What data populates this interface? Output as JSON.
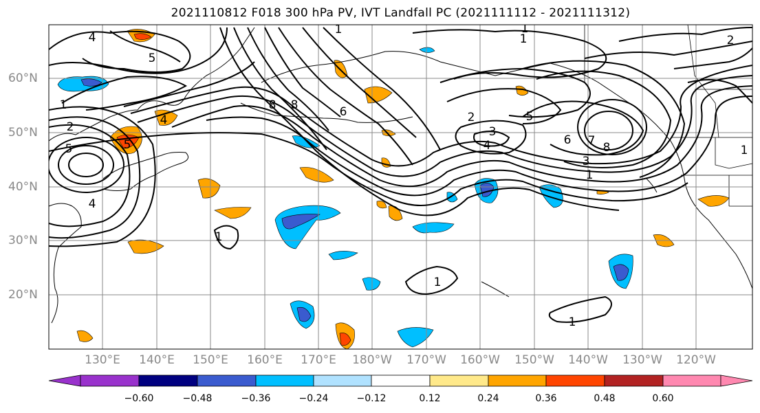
{
  "title": "2021110812 F018 300 hPa PV, IVT Landfall PC (2021111112 - 2021111312)",
  "lat_labels": [
    "60°N",
    "50°N",
    "40°N",
    "30°N",
    "20°N"
  ],
  "lon_labels": [
    "130°E",
    "140°E",
    "150°E",
    "160°E",
    "170°E",
    "180°W",
    "170°W",
    "160°W",
    "150°W",
    "140°W",
    "130°W",
    "120°W"
  ],
  "contour_labels": [
    "4",
    "5",
    "1",
    "2",
    "5",
    "5",
    "4",
    "4",
    "8",
    "8",
    "6",
    "2",
    "3",
    "4",
    "5",
    "6",
    "7",
    "8",
    "3",
    "1",
    "1",
    "1",
    "1",
    "1",
    "1",
    "1",
    "2",
    "1"
  ],
  "colorbar": {
    "tick_labels": [
      "−0.60",
      "−0.48",
      "−0.36",
      "−0.24",
      "−0.12",
      "0.12",
      "0.24",
      "0.36",
      "0.48",
      "0.60"
    ],
    "colors": [
      "#9932cc",
      "#000080",
      "#3a5bcf",
      "#00bfff",
      "#b0e2ff",
      "#ffffff",
      "#ffe98a",
      "#ffa500",
      "#ff4500",
      "#b22222",
      "#ff88b0"
    ]
  }
}
